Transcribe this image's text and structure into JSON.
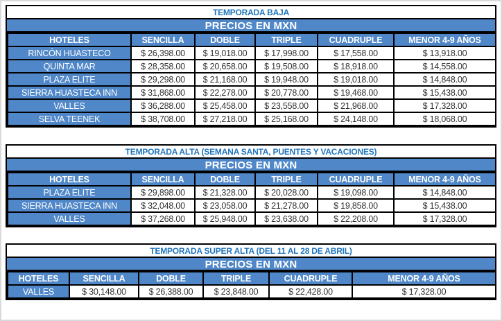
{
  "colors": {
    "blue_fill": "#4f87c9",
    "title_text": "#1f74bc",
    "price_text": "#333333",
    "table_border": "#000000",
    "page_frame": "#d9d9d9"
  },
  "tables": [
    {
      "title": "TEMPORADA BAJA",
      "banner": "PRECIOS EN MXN",
      "columns": [
        "HOTELES",
        "SENCILLA",
        "DOBLE",
        "TRIPLE",
        "CUADRUPLE",
        "MENOR 4-9 AÑOS"
      ],
      "rows": [
        {
          "hotel": "RINCÓN HUASTECO",
          "prices": [
            "$ 26,398.00",
            "$ 19,018.00",
            "$ 17,998.00",
            "$ 17,558.00",
            "$ 13,918.00"
          ]
        },
        {
          "hotel": "QUINTA MAR",
          "prices": [
            "$ 28,358.00",
            "$ 20,658.00",
            "$ 19,508.00",
            "$ 18,918.00",
            "$ 14,558.00"
          ]
        },
        {
          "hotel": "PLAZA ELITE",
          "prices": [
            "$ 29,298.00",
            "$ 21,168.00",
            "$ 19,948.00",
            "$ 19,018.00",
            "$ 14,848.00"
          ]
        },
        {
          "hotel": "SIERRA HUASTECA INN",
          "prices": [
            "$ 31,868.00",
            "$ 22,278.00",
            "$ 20,778.00",
            "$ 19,468.00",
            "$ 15,438.00"
          ]
        },
        {
          "hotel": "VALLES",
          "prices": [
            "$ 36,288.00",
            "$ 25,458.00",
            "$ 23,558.00",
            "$ 21,968.00",
            "$ 17,328.00"
          ]
        },
        {
          "hotel": "SELVA TEENEK",
          "prices": [
            "$ 38,708.00",
            "$ 27,218.00",
            "$ 25,168.00",
            "$ 24,148.00",
            "$ 18,068.00"
          ]
        }
      ]
    },
    {
      "title": "TEMPORADA ALTA (SEMANA SANTA, PUENTES Y VACACIONES)",
      "banner": "PRECIOS EN MXN",
      "columns": [
        "HOTELES",
        "SENCILLA",
        "DOBLE",
        "TRIPLE",
        "CUADRUPLE",
        "MENOR 4-9 AÑOS"
      ],
      "rows": [
        {
          "hotel": "PLAZA ELITE",
          "prices": [
            "$ 29,898.00",
            "$ 21,328.00",
            "$ 20,028.00",
            "$ 19,098.00",
            "$ 14,848.00"
          ]
        },
        {
          "hotel": "SIERRA HUASTECA INN",
          "prices": [
            "$ 32,048.00",
            "$ 23,058.00",
            "$ 21,278.00",
            "$ 19,858.00",
            "$ 15,438.00"
          ]
        },
        {
          "hotel": "VALLES",
          "prices": [
            "$ 37,268.00",
            "$ 25,948.00",
            "$ 23,638.00",
            "$ 22,208.00",
            "$ 17,328.00"
          ]
        }
      ]
    },
    {
      "title": "TEMPORADA SUPER ALTA (DEL 11 AL 28 DE ABRIL)",
      "banner": "PRECIOS EN MXN",
      "columns": [
        "HOTELES",
        "SENCILLA",
        "DOBLE",
        "TRIPLE",
        "CUADRUPLE",
        "MENOR 4-9 AÑOS"
      ],
      "rows": [
        {
          "hotel": "VALLES",
          "prices": [
            "$ 30,148.00",
            "$ 26,388.00",
            "$ 23,848.00",
            "$ 22,428.00",
            "$ 17,328.00"
          ]
        }
      ]
    }
  ]
}
